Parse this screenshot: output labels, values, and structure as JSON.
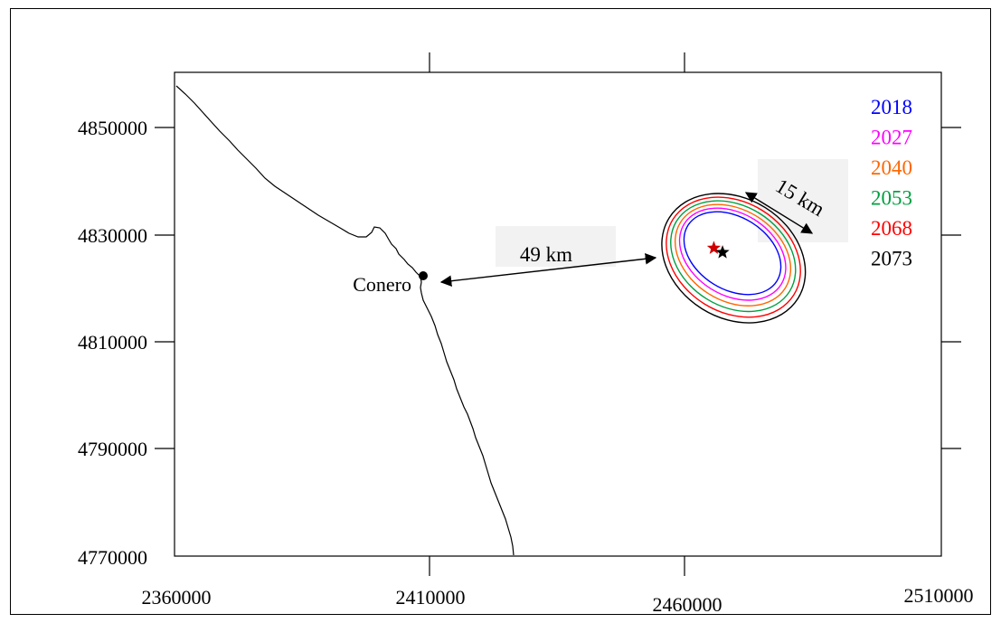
{
  "chart_data": {
    "type": "map",
    "x_ticks": [
      "2360000",
      "2410000",
      "2460000",
      "2510000"
    ],
    "y_ticks": [
      "4850000",
      "4830000",
      "4810000",
      "4790000",
      "4770000"
    ],
    "xlim": [
      2360000,
      2510000
    ],
    "ylim": [
      4770000,
      4860000
    ],
    "place": {
      "label": "Conero",
      "x": 2409500,
      "y": 4822300
    },
    "distance_annotations": [
      {
        "label": "49 km"
      },
      {
        "label": "15 km"
      }
    ],
    "contour_years": [
      {
        "year": "2018",
        "color": "#0000ff"
      },
      {
        "year": "2027",
        "color": "#ff00ff"
      },
      {
        "year": "2040",
        "color": "#ff6600"
      },
      {
        "year": "2053",
        "color": "#00a040"
      },
      {
        "year": "2068",
        "color": "#ff0000"
      },
      {
        "year": "2073",
        "color": "#000000"
      }
    ],
    "markers": [
      {
        "x": 2465500,
        "y": 4827300,
        "color": "#d00000"
      },
      {
        "x": 2467200,
        "y": 4826500,
        "color": "#000000"
      }
    ]
  }
}
